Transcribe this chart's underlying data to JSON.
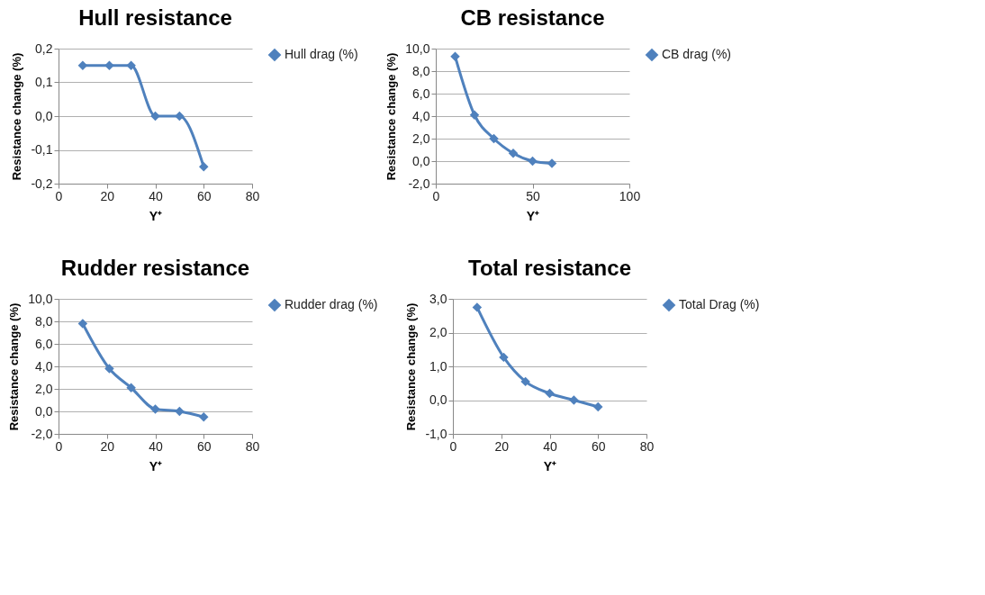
{
  "chart_data": [
    {
      "type": "line",
      "title": "Hull resistance",
      "xlabel": "Y⁺",
      "ylabel": "Resistance change (%)",
      "x": [
        10,
        21,
        30,
        40,
        50,
        60
      ],
      "series": [
        {
          "name": "Hull drag (%)",
          "color": "#4f81bd",
          "values": [
            0.15,
            0.15,
            0.15,
            0.0,
            0.0,
            -0.15
          ]
        }
      ],
      "xlim": [
        0,
        80
      ],
      "xticks": [
        0,
        20,
        40,
        60,
        80
      ],
      "ylim": [
        -0.2,
        0.2
      ],
      "yticks": [
        {
          "value": -0.2,
          "label": "-0,2"
        },
        {
          "value": -0.1,
          "label": "-0,1"
        },
        {
          "value": 0,
          "label": "0,0"
        },
        {
          "value": 0.1,
          "label": "0,1"
        },
        {
          "value": 0.2,
          "label": "0,2"
        }
      ],
      "grid": "y",
      "legend": "right",
      "marker": "diamond",
      "line_style": "solid"
    },
    {
      "type": "line",
      "title": "CB resistance",
      "xlabel": "Y⁺",
      "ylabel": "Resistance change (%)",
      "x": [
        10,
        20,
        30,
        40,
        50,
        60
      ],
      "series": [
        {
          "name": "CB drag (%)",
          "color": "#4f81bd",
          "values": [
            9.3,
            4.1,
            2.0,
            0.7,
            0.0,
            -0.2
          ]
        }
      ],
      "xlim": [
        0,
        100
      ],
      "xticks": [
        0,
        50,
        100
      ],
      "ylim": [
        -2,
        10
      ],
      "yticks": [
        {
          "value": -2,
          "label": "-2,0"
        },
        {
          "value": 0,
          "label": "0,0"
        },
        {
          "value": 2,
          "label": "2,0"
        },
        {
          "value": 4,
          "label": "4,0"
        },
        {
          "value": 6,
          "label": "6,0"
        },
        {
          "value": 8,
          "label": "8,0"
        },
        {
          "value": 10,
          "label": "10,0"
        }
      ],
      "grid": "y",
      "legend": "right",
      "marker": "diamond",
      "line_style": "solid"
    },
    {
      "type": "line",
      "title": "Rudder resistance",
      "xlabel": "Y⁺",
      "ylabel": "Resistance change (%)",
      "x": [
        10,
        21,
        30,
        40,
        50,
        60
      ],
      "series": [
        {
          "name": "Rudder drag (%)",
          "color": "#4f81bd",
          "values": [
            7.8,
            3.8,
            2.1,
            0.2,
            0.0,
            -0.5
          ]
        }
      ],
      "xlim": [
        0,
        80
      ],
      "xticks": [
        0,
        20,
        40,
        60,
        80
      ],
      "ylim": [
        -2,
        10
      ],
      "yticks": [
        {
          "value": -2,
          "label": "-2,0"
        },
        {
          "value": 0,
          "label": "0,0"
        },
        {
          "value": 2,
          "label": "2,0"
        },
        {
          "value": 4,
          "label": "4,0"
        },
        {
          "value": 6,
          "label": "6,0"
        },
        {
          "value": 8,
          "label": "8,0"
        },
        {
          "value": 10,
          "label": "10,0"
        }
      ],
      "grid": "y",
      "legend": "right",
      "marker": "diamond",
      "line_style": "solid"
    },
    {
      "type": "line",
      "title": "Total resistance",
      "xlabel": "Y⁺",
      "ylabel": "Resistance change (%)",
      "x": [
        10,
        21,
        30,
        40,
        50,
        60
      ],
      "series": [
        {
          "name": "Total Drag (%)",
          "color": "#4f81bd",
          "values": [
            2.75,
            1.27,
            0.55,
            0.2,
            0.0,
            -0.2
          ]
        }
      ],
      "xlim": [
        0,
        80
      ],
      "xticks": [
        0,
        20,
        40,
        60,
        80
      ],
      "ylim": [
        -1,
        3
      ],
      "yticks": [
        {
          "value": -1,
          "label": "-1,0"
        },
        {
          "value": 0,
          "label": "0,0"
        },
        {
          "value": 1,
          "label": "1,0"
        },
        {
          "value": 2,
          "label": "2,0"
        },
        {
          "value": 3,
          "label": "3,0"
        }
      ],
      "grid": "y",
      "legend": "right",
      "marker": "diamond",
      "line_style": "solid"
    }
  ]
}
